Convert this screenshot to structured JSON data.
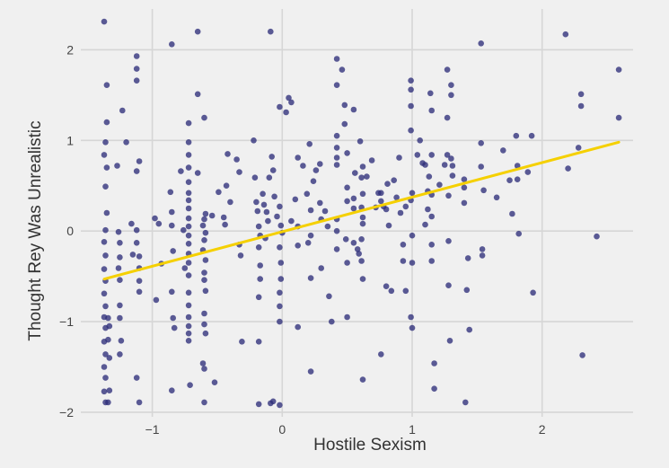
{
  "chart_data": {
    "type": "scatter",
    "xlabel": "Hostile Sexism",
    "ylabel": "Thought Rey Was Unrealistic",
    "xlim": [
      -1.55,
      2.7
    ],
    "ylim": [
      -2.05,
      2.45
    ],
    "x_ticks": [
      -1,
      0,
      1,
      2
    ],
    "y_ticks": [
      -2,
      -1,
      0,
      1,
      2
    ],
    "x_tick_labels": [
      "−1",
      "0",
      "1",
      "2"
    ],
    "y_tick_labels": [
      "−2",
      "−1",
      "0",
      "1",
      "2"
    ],
    "grid": true,
    "legend": "none",
    "point_color": "#2e2e7a",
    "line_color": "#f5d000",
    "trend_line": {
      "x": [
        -1.37,
        2.59
      ],
      "y": [
        -0.53,
        0.98
      ]
    },
    "points": [
      [
        -1.37,
        2.31
      ],
      [
        -1.35,
        1.61
      ],
      [
        -1.35,
        1.2
      ],
      [
        -1.36,
        0.98
      ],
      [
        -1.37,
        0.84
      ],
      [
        -1.35,
        0.7
      ],
      [
        -1.36,
        0.49
      ],
      [
        -1.35,
        0.2
      ],
      [
        -1.36,
        0.01
      ],
      [
        -1.37,
        -0.12
      ],
      [
        -1.36,
        -0.27
      ],
      [
        -1.37,
        -0.42
      ],
      [
        -1.36,
        -0.55
      ],
      [
        -1.37,
        -0.69
      ],
      [
        -1.36,
        -0.83
      ],
      [
        -1.37,
        -0.95
      ],
      [
        -1.36,
        -1.07
      ],
      [
        -1.37,
        -1.22
      ],
      [
        -1.36,
        -1.36
      ],
      [
        -1.37,
        -1.5
      ],
      [
        -1.36,
        -1.62
      ],
      [
        -1.37,
        -1.77
      ],
      [
        -1.36,
        -1.89
      ],
      [
        -1.34,
        -1.89
      ],
      [
        -1.33,
        -1.76
      ],
      [
        -1.33,
        -1.4
      ],
      [
        -1.34,
        -1.2
      ],
      [
        -1.33,
        -1.05
      ],
      [
        -1.34,
        -0.96
      ],
      [
        -1.27,
        0.72
      ],
      [
        -1.26,
        -0.01
      ],
      [
        -1.25,
        -0.13
      ],
      [
        -1.25,
        -0.29
      ],
      [
        -1.26,
        -0.41
      ],
      [
        -1.25,
        -0.54
      ],
      [
        -1.25,
        -0.82
      ],
      [
        -1.25,
        -0.96
      ],
      [
        -1.24,
        -1.21
      ],
      [
        -1.25,
        -1.36
      ],
      [
        -1.23,
        1.33
      ],
      [
        -1.2,
        0.98
      ],
      [
        -1.16,
        0.08
      ],
      [
        -1.15,
        -0.26
      ],
      [
        -1.12,
        1.93
      ],
      [
        -1.12,
        1.79
      ],
      [
        -1.12,
        1.66
      ],
      [
        -1.1,
        0.77
      ],
      [
        -1.12,
        0.66
      ],
      [
        -1.12,
        0.01
      ],
      [
        -1.12,
        -0.13
      ],
      [
        -1.1,
        -0.28
      ],
      [
        -1.1,
        -0.41
      ],
      [
        -1.1,
        -0.55
      ],
      [
        -1.1,
        -0.67
      ],
      [
        -1.12,
        -1.62
      ],
      [
        -1.1,
        -1.89
      ],
      [
        -0.98,
        0.14
      ],
      [
        -0.97,
        -0.76
      ],
      [
        -0.95,
        0.08
      ],
      [
        -0.93,
        -0.36
      ],
      [
        -0.85,
        2.06
      ],
      [
        -0.86,
        0.43
      ],
      [
        -0.85,
        0.21
      ],
      [
        -0.85,
        0.06
      ],
      [
        -0.84,
        -0.22
      ],
      [
        -0.85,
        -0.67
      ],
      [
        -0.84,
        -0.96
      ],
      [
        -0.83,
        -1.07
      ],
      [
        -0.85,
        -1.76
      ],
      [
        -0.78,
        0.66
      ],
      [
        -0.76,
        0.01
      ],
      [
        -0.75,
        -0.41
      ],
      [
        -0.72,
        1.19
      ],
      [
        -0.72,
        0.98
      ],
      [
        -0.72,
        0.84
      ],
      [
        -0.72,
        0.7
      ],
      [
        -0.72,
        0.54
      ],
      [
        -0.72,
        0.42
      ],
      [
        -0.72,
        0.34
      ],
      [
        -0.72,
        0.25
      ],
      [
        -0.72,
        0.14
      ],
      [
        -0.72,
        0.05
      ],
      [
        -0.72,
        -0.05
      ],
      [
        -0.72,
        -0.14
      ],
      [
        -0.72,
        -0.25
      ],
      [
        -0.72,
        -0.35
      ],
      [
        -0.72,
        -0.49
      ],
      [
        -0.72,
        -0.68
      ],
      [
        -0.72,
        -0.82
      ],
      [
        -0.72,
        -0.95
      ],
      [
        -0.72,
        -1.05
      ],
      [
        -0.72,
        -1.13
      ],
      [
        -0.72,
        -1.21
      ],
      [
        -0.71,
        -1.7
      ],
      [
        -0.65,
        2.2
      ],
      [
        -0.65,
        1.51
      ],
      [
        -0.65,
        0.64
      ],
      [
        -0.6,
        1.25
      ],
      [
        -0.59,
        0.19
      ],
      [
        -0.6,
        0.13
      ],
      [
        -0.61,
        0.06
      ],
      [
        -0.59,
        -0.02
      ],
      [
        -0.6,
        -0.1
      ],
      [
        -0.61,
        -0.21
      ],
      [
        -0.59,
        -0.32
      ],
      [
        -0.6,
        -0.46
      ],
      [
        -0.6,
        -0.54
      ],
      [
        -0.59,
        -0.66
      ],
      [
        -0.6,
        -0.91
      ],
      [
        -0.6,
        -1.03
      ],
      [
        -0.59,
        -1.13
      ],
      [
        -0.61,
        -1.46
      ],
      [
        -0.6,
        -1.52
      ],
      [
        -0.6,
        -1.89
      ],
      [
        -0.54,
        0.17
      ],
      [
        -0.52,
        -1.67
      ],
      [
        -0.49,
        0.43
      ],
      [
        -0.45,
        0.15
      ],
      [
        -0.44,
        0.07
      ],
      [
        -0.43,
        0.5
      ],
      [
        -0.42,
        0.85
      ],
      [
        -0.4,
        0.32
      ],
      [
        -0.35,
        0.79
      ],
      [
        -0.33,
        0.65
      ],
      [
        -0.33,
        -0.15
      ],
      [
        -0.32,
        -0.27
      ],
      [
        -0.31,
        -1.22
      ],
      [
        -0.22,
        1.0
      ],
      [
        -0.21,
        0.59
      ],
      [
        -0.2,
        0.32
      ],
      [
        -0.19,
        0.22
      ],
      [
        -0.18,
        0.05
      ],
      [
        -0.17,
        -0.05
      ],
      [
        -0.18,
        -0.18
      ],
      [
        -0.17,
        -0.38
      ],
      [
        -0.17,
        -0.53
      ],
      [
        -0.18,
        -0.73
      ],
      [
        -0.18,
        -1.22
      ],
      [
        -0.18,
        -1.91
      ],
      [
        -0.15,
        0.41
      ],
      [
        -0.14,
        0.29
      ],
      [
        -0.12,
        0.21
      ],
      [
        -0.11,
        0.11
      ],
      [
        -0.13,
        -0.08
      ],
      [
        -0.1,
        0.59
      ],
      [
        -0.08,
        0.82
      ],
      [
        -0.07,
        0.67
      ],
      [
        -0.06,
        0.38
      ],
      [
        -0.04,
        0.16
      ],
      [
        -0.02,
        1.37
      ],
      [
        -0.02,
        0.27
      ],
      [
        -0.01,
        0.06
      ],
      [
        0.0,
        -0.02
      ],
      [
        -0.02,
        -0.18
      ],
      [
        -0.01,
        -0.35
      ],
      [
        -0.01,
        -0.53
      ],
      [
        -0.02,
        -0.68
      ],
      [
        -0.02,
        -0.83
      ],
      [
        -0.02,
        -1.0
      ],
      [
        -0.02,
        -1.92
      ],
      [
        -0.07,
        -1.88
      ],
      [
        -0.09,
        -1.9
      ],
      [
        -0.09,
        2.2
      ],
      [
        0.03,
        1.31
      ],
      [
        0.05,
        1.47
      ],
      [
        0.07,
        1.42
      ],
      [
        0.07,
        0.11
      ],
      [
        0.1,
        0.35
      ],
      [
        0.12,
        0.81
      ],
      [
        0.12,
        0.05
      ],
      [
        0.12,
        -0.16
      ],
      [
        0.12,
        -1.06
      ],
      [
        0.16,
        0.72
      ],
      [
        0.19,
        0.41
      ],
      [
        0.2,
        -0.13
      ],
      [
        0.21,
        0.96
      ],
      [
        0.22,
        0.23
      ],
      [
        0.22,
        -0.05
      ],
      [
        0.22,
        -0.52
      ],
      [
        0.22,
        -1.55
      ],
      [
        0.24,
        0.55
      ],
      [
        0.26,
        0.67
      ],
      [
        0.29,
        0.74
      ],
      [
        0.29,
        0.31
      ],
      [
        0.3,
        -0.41
      ],
      [
        0.3,
        0.13
      ],
      [
        0.33,
        0.22
      ],
      [
        0.35,
        0.05
      ],
      [
        0.36,
        -0.72
      ],
      [
        0.38,
        -1.0
      ],
      [
        0.42,
        1.9
      ],
      [
        0.42,
        1.61
      ],
      [
        0.42,
        1.05
      ],
      [
        0.42,
        0.92
      ],
      [
        0.42,
        0.81
      ],
      [
        0.42,
        0.73
      ],
      [
        0.42,
        0.13
      ],
      [
        0.42,
        0.0
      ],
      [
        0.42,
        -0.2
      ],
      [
        0.46,
        1.78
      ],
      [
        0.48,
        1.39
      ],
      [
        0.48,
        1.18
      ],
      [
        0.5,
        0.86
      ],
      [
        0.5,
        0.48
      ],
      [
        0.5,
        0.33
      ],
      [
        0.49,
        -0.09
      ],
      [
        0.5,
        -0.35
      ],
      [
        0.5,
        -0.95
      ],
      [
        0.55,
        1.34
      ],
      [
        0.56,
        0.64
      ],
      [
        0.55,
        0.36
      ],
      [
        0.55,
        0.25
      ],
      [
        0.55,
        -0.13
      ],
      [
        0.58,
        -0.2
      ],
      [
        0.59,
        -0.25
      ],
      [
        0.6,
        0.99
      ],
      [
        0.62,
        0.71
      ],
      [
        0.61,
        0.59
      ],
      [
        0.62,
        0.41
      ],
      [
        0.61,
        0.26
      ],
      [
        0.62,
        0.15
      ],
      [
        0.62,
        0.08
      ],
      [
        0.61,
        -0.09
      ],
      [
        0.61,
        -0.33
      ],
      [
        0.62,
        -0.53
      ],
      [
        0.62,
        -1.64
      ],
      [
        0.65,
        0.6
      ],
      [
        0.69,
        0.78
      ],
      [
        0.72,
        0.26
      ],
      [
        0.74,
        0.42
      ],
      [
        0.76,
        -1.36
      ],
      [
        0.76,
        0.42
      ],
      [
        0.76,
        0.33
      ],
      [
        0.78,
        0.27
      ],
      [
        0.8,
        -0.61
      ],
      [
        0.8,
        0.24
      ],
      [
        0.81,
        0.52
      ],
      [
        0.82,
        0.06
      ],
      [
        0.84,
        -0.66
      ],
      [
        0.86,
        0.56
      ],
      [
        0.88,
        0.37
      ],
      [
        0.9,
        0.81
      ],
      [
        0.91,
        0.2
      ],
      [
        0.93,
        -0.15
      ],
      [
        0.93,
        -0.33
      ],
      [
        0.95,
        0.27
      ],
      [
        0.95,
        -0.66
      ],
      [
        0.99,
        1.66
      ],
      [
        0.99,
        1.56
      ],
      [
        0.99,
        1.38
      ],
      [
        0.99,
        1.11
      ],
      [
        1.0,
        0.42
      ],
      [
        0.99,
        0.34
      ],
      [
        1.0,
        -0.05
      ],
      [
        1.0,
        -0.35
      ],
      [
        0.99,
        -0.95
      ],
      [
        1.0,
        -1.07
      ],
      [
        1.04,
        0.84
      ],
      [
        1.06,
        1.0
      ],
      [
        1.08,
        0.75
      ],
      [
        1.1,
        0.73
      ],
      [
        1.1,
        0.07
      ],
      [
        1.12,
        0.24
      ],
      [
        1.12,
        0.44
      ],
      [
        1.13,
        0.6
      ],
      [
        1.14,
        1.52
      ],
      [
        1.15,
        1.33
      ],
      [
        1.15,
        0.84
      ],
      [
        1.15,
        0.4
      ],
      [
        1.15,
        0.16
      ],
      [
        1.15,
        -0.15
      ],
      [
        1.15,
        -0.33
      ],
      [
        1.17,
        -1.46
      ],
      [
        1.17,
        -1.74
      ],
      [
        1.21,
        0.51
      ],
      [
        1.25,
        0.73
      ],
      [
        1.27,
        1.78
      ],
      [
        1.27,
        1.25
      ],
      [
        1.27,
        0.84
      ],
      [
        1.28,
        0.39
      ],
      [
        1.28,
        -0.11
      ],
      [
        1.28,
        -0.6
      ],
      [
        1.29,
        -1.21
      ],
      [
        1.3,
        1.61
      ],
      [
        1.3,
        1.5
      ],
      [
        1.3,
        0.8
      ],
      [
        1.31,
        0.72
      ],
      [
        1.31,
        0.61
      ],
      [
        1.4,
        0.57
      ],
      [
        1.4,
        0.48
      ],
      [
        1.4,
        0.31
      ],
      [
        1.41,
        -1.89
      ],
      [
        1.42,
        -0.65
      ],
      [
        1.43,
        -0.3
      ],
      [
        1.44,
        -1.09
      ],
      [
        1.53,
        2.07
      ],
      [
        1.53,
        0.97
      ],
      [
        1.53,
        0.71
      ],
      [
        1.54,
        -0.2
      ],
      [
        1.54,
        -0.27
      ],
      [
        1.55,
        0.45
      ],
      [
        1.65,
        0.37
      ],
      [
        1.7,
        0.89
      ],
      [
        1.75,
        0.56
      ],
      [
        1.77,
        0.19
      ],
      [
        1.8,
        1.05
      ],
      [
        1.81,
        0.72
      ],
      [
        1.81,
        0.57
      ],
      [
        1.82,
        -0.03
      ],
      [
        1.89,
        0.65
      ],
      [
        1.92,
        1.05
      ],
      [
        1.93,
        -0.68
      ],
      [
        2.18,
        2.17
      ],
      [
        2.2,
        0.69
      ],
      [
        2.28,
        0.92
      ],
      [
        2.3,
        1.51
      ],
      [
        2.3,
        1.38
      ],
      [
        2.31,
        -1.37
      ],
      [
        2.42,
        -0.06
      ],
      [
        2.59,
        1.78
      ],
      [
        2.59,
        1.25
      ]
    ]
  }
}
